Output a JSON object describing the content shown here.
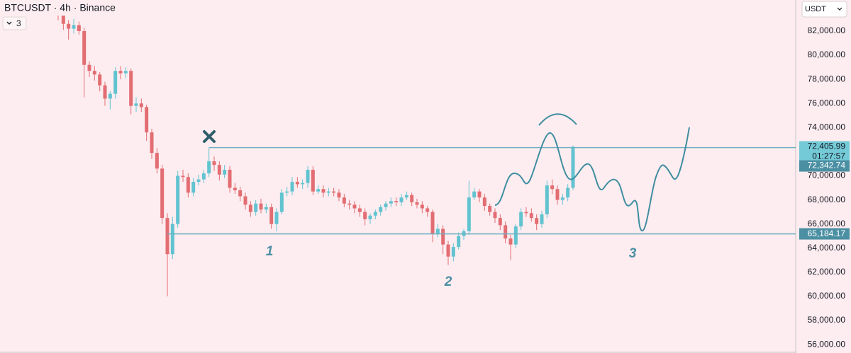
{
  "chart_data": {
    "type": "candlestick",
    "title": "BTCUSDT · 4h · Binance",
    "indicator_count": 3,
    "currency": "USDT",
    "up_color": "#62c3d0",
    "down_color": "#e26d72",
    "level_color": "#6fb0c2",
    "ylim": [
      55420,
      84580
    ],
    "yticks": [
      {
        "value": 56000,
        "label": "56,000.00"
      },
      {
        "value": 58000,
        "label": "58,000.00"
      },
      {
        "value": 60000,
        "label": "60,000.00"
      },
      {
        "value": 62000,
        "label": "62,000.00"
      },
      {
        "value": 64000,
        "label": "64,000.00"
      },
      {
        "value": 66000,
        "label": "66,000.00"
      },
      {
        "value": 68000,
        "label": "68,000.00"
      },
      {
        "value": 70000,
        "label": "70,000.00"
      },
      {
        "value": 72000,
        "label": "72,000.00"
      },
      {
        "value": 74000,
        "label": "74,000.00"
      },
      {
        "value": 76000,
        "label": "76,000.00"
      },
      {
        "value": 78000,
        "label": "78,000.00"
      },
      {
        "value": 80000,
        "label": "80,000.00"
      },
      {
        "value": 82000,
        "label": "82,000.00"
      }
    ],
    "last_price": {
      "value": 72405.99,
      "label": "72,405.99"
    },
    "countdown": "01:27:57",
    "levels": [
      {
        "value": 72342.74,
        "label": "72,342.74"
      },
      {
        "value": 65184.17,
        "label": "65,184.17"
      }
    ],
    "annotations": [
      "1",
      "2",
      "3"
    ],
    "series": [
      {
        "open": [
          83800,
          83400,
          82600,
          82200,
          82500,
          82000,
          79200,
          78700,
          78400,
          77500,
          76400,
          76800,
          78700,
          78500,
          78700,
          75800,
          76000,
          75700,
          73600,
          71900,
          70600,
          66500,
          63500,
          66000,
          70000,
          69900,
          68600,
          69500,
          69700,
          70200,
          71200,
          70900,
          70100,
          70500,
          69000,
          68800,
          68300,
          67600,
          67000,
          67700,
          67200,
          67400,
          66000,
          67000,
          68600,
          68700,
          69500,
          69300,
          69400,
          70500,
          68700,
          68900,
          68600,
          68700,
          68600,
          68200,
          67700,
          67600,
          67300,
          67000,
          66400,
          66700,
          67000,
          67400,
          67700,
          67900,
          67800,
          68200,
          68400,
          67800,
          67600,
          67300,
          67000,
          65200,
          65600,
          64300,
          63300,
          64100,
          65000,
          65400,
          68200,
          68700,
          68200,
          67500,
          67000,
          66500,
          65900,
          64800,
          64300,
          65800,
          67000,
          66900,
          66500,
          66000,
          66800,
          69200,
          68900,
          68000,
          68200,
          69000
        ],
        "high": [
          84200,
          83700,
          82900,
          83000,
          82800,
          82300,
          79500,
          79100,
          78600,
          77800,
          77000,
          79000,
          79100,
          79000,
          78900,
          76500,
          76400,
          75900,
          73900,
          72300,
          70900,
          66900,
          66600,
          70400,
          70500,
          70200,
          69800,
          70100,
          70500,
          72300,
          71600,
          71200,
          70900,
          70800,
          69400,
          69100,
          68600,
          67900,
          68000,
          68100,
          67700,
          67700,
          67300,
          68900,
          69100,
          69900,
          69900,
          69700,
          70800,
          70800,
          69200,
          69200,
          69000,
          69000,
          68900,
          68500,
          68000,
          67900,
          67600,
          67300,
          66900,
          67200,
          67600,
          67900,
          68200,
          68200,
          68500,
          68700,
          68600,
          68100,
          67900,
          67500,
          67200,
          66000,
          65900,
          64600,
          64400,
          65300,
          65600,
          69600,
          69000,
          68900,
          68500,
          67700,
          67300,
          66800,
          66200,
          65100,
          66000,
          67300,
          67400,
          67300,
          66800,
          67100,
          69600,
          69700,
          69200,
          68500,
          69300,
          72500
        ],
        "low": [
          82900,
          82100,
          81300,
          81800,
          81700,
          76500,
          78200,
          77900,
          77000,
          75800,
          75500,
          76400,
          78000,
          78100,
          75100,
          75300,
          75300,
          72900,
          71400,
          70200,
          66000,
          60000,
          63100,
          65700,
          69500,
          68200,
          68300,
          69200,
          69400,
          69900,
          70400,
          69600,
          69800,
          68600,
          68500,
          67900,
          67200,
          66600,
          66700,
          66900,
          66900,
          65600,
          65400,
          66800,
          68300,
          68400,
          69000,
          68900,
          69000,
          68400,
          68500,
          68200,
          68300,
          68300,
          67900,
          67400,
          67200,
          66900,
          66600,
          65900,
          66000,
          66400,
          66700,
          67100,
          67400,
          67500,
          67500,
          68000,
          67500,
          67300,
          66900,
          66600,
          64500,
          64900,
          63500,
          62600,
          62900,
          63900,
          64700,
          65100,
          68000,
          67800,
          67100,
          66700,
          66100,
          65500,
          64400,
          63000,
          64000,
          65500,
          66600,
          66200,
          65500,
          65700,
          66500,
          68500,
          67600,
          67600,
          67900,
          68800
        ],
        "close": [
          83400,
          82600,
          82200,
          82500,
          82000,
          79200,
          78700,
          78400,
          77500,
          76400,
          76800,
          78700,
          78500,
          78700,
          75800,
          76000,
          75700,
          73600,
          71900,
          70600,
          66500,
          63500,
          66000,
          70000,
          69900,
          68600,
          69500,
          69700,
          70200,
          71200,
          70900,
          70100,
          70500,
          69000,
          68800,
          68300,
          67600,
          67000,
          67700,
          67200,
          67400,
          66000,
          67000,
          68600,
          68700,
          69500,
          69300,
          69400,
          70500,
          68700,
          68900,
          68600,
          68700,
          68600,
          68200,
          67700,
          67600,
          67300,
          67000,
          66400,
          66700,
          67000,
          67400,
          67700,
          67900,
          67800,
          68200,
          68400,
          67800,
          67600,
          67300,
          67000,
          65200,
          65600,
          64300,
          63300,
          64100,
          65000,
          65400,
          68200,
          68700,
          68200,
          67500,
          67000,
          66500,
          65900,
          64800,
          64300,
          65800,
          67000,
          66900,
          66500,
          66000,
          66800,
          69200,
          68900,
          68000,
          68200,
          69000,
          72405.99
        ]
      }
    ]
  }
}
